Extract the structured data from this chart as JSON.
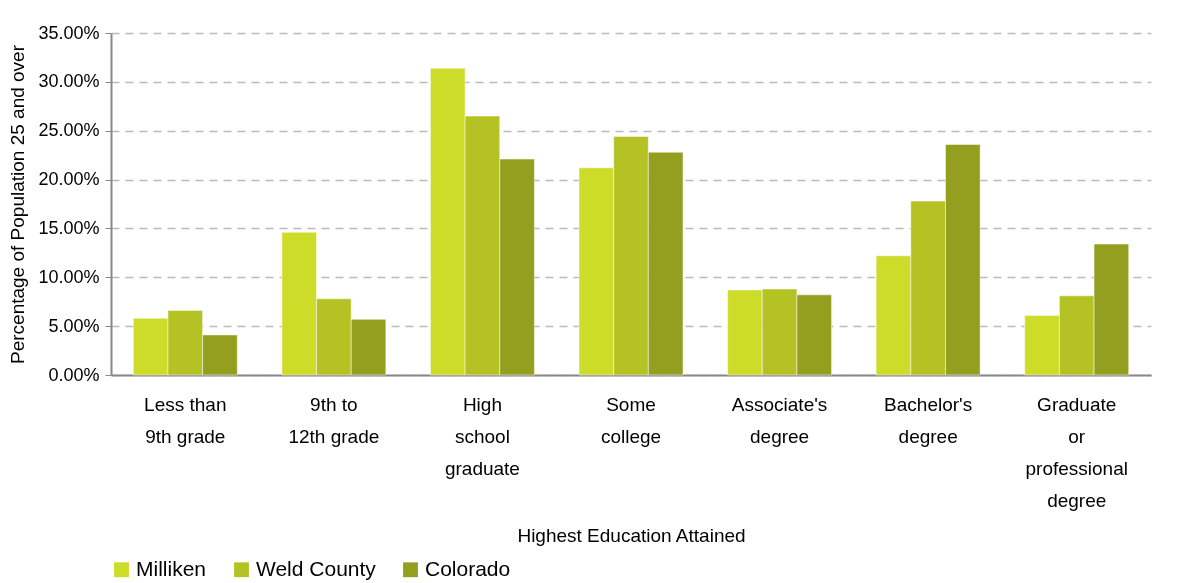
{
  "chart_data": {
    "type": "bar",
    "xlabel": "Highest Education Attained",
    "ylabel": "Percentage of Population 25 and over",
    "categories": [
      "Less than 9th grade",
      "9th to 12th grade",
      "High school graduate",
      "Some college",
      "Associate's degree",
      "Bachelor's degree",
      "Graduate or professional degree"
    ],
    "series": [
      {
        "name": "Milliken",
        "color": "#cddc28",
        "values": [
          5.8,
          14.6,
          31.4,
          21.2,
          8.7,
          12.2,
          6.1
        ]
      },
      {
        "name": "Weld County",
        "color": "#b5c224",
        "values": [
          6.6,
          7.8,
          26.5,
          24.4,
          8.8,
          17.8,
          8.1
        ]
      },
      {
        "name": "Colorado",
        "color": "#949e1f",
        "values": [
          4.1,
          5.7,
          22.1,
          22.8,
          8.2,
          23.6,
          13.4
        ]
      }
    ],
    "ylim": [
      0,
      35
    ],
    "yticks": [
      {
        "value": 0,
        "label": "0.00%"
      },
      {
        "value": 5,
        "label": "5.00%"
      },
      {
        "value": 10,
        "label": "10.00%"
      },
      {
        "value": 15,
        "label": "15.00%"
      },
      {
        "value": 20,
        "label": "20.00%"
      },
      {
        "value": 25,
        "label": "25.00%"
      },
      {
        "value": 30,
        "label": "30.00%"
      },
      {
        "value": 35,
        "label": "35.00%"
      }
    ],
    "grid": "y",
    "legend": "bottom"
  }
}
